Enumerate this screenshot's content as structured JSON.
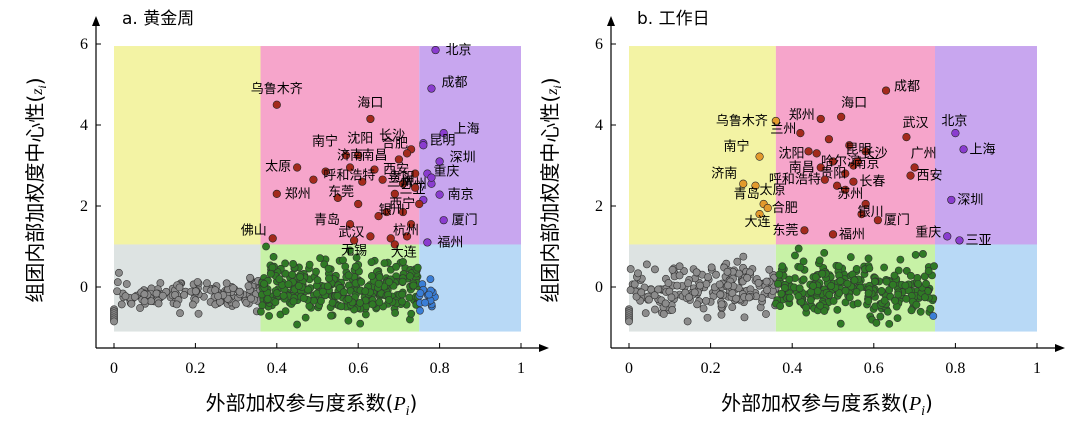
{
  "chart_data": [
    {
      "type": "scatter",
      "title": "a. 黄金周",
      "xlabel": "外部加权参与度系数",
      "xlabel_sym": "P",
      "xlabel_sub": "i",
      "ylabel": "组团内部加权度中心性",
      "ylabel_sym": "z",
      "ylabel_sub": "i",
      "xlim": [
        0,
        1
      ],
      "ylim": [
        -1.3,
        6
      ],
      "xticks": [
        "0",
        "0.2",
        "0.4",
        "0.6",
        "0.8",
        "1"
      ],
      "yticks": [
        "0",
        "2",
        "4",
        "6"
      ],
      "regions": [
        {
          "x": [
            0,
            0.36
          ],
          "y": [
            1.05,
            5.95
          ],
          "color": "#f3f3a4"
        },
        {
          "x": [
            0.36,
            0.75
          ],
          "y": [
            1.05,
            5.95
          ],
          "color": "#f6a5cb"
        },
        {
          "x": [
            0.75,
            1
          ],
          "y": [
            1.05,
            5.95
          ],
          "color": "#c8a6ef"
        },
        {
          "x": [
            0,
            0.36
          ],
          "y": [
            -1.1,
            1.05
          ],
          "color": "#dde3e2"
        },
        {
          "x": [
            0.36,
            0.75
          ],
          "y": [
            -1.1,
            1.05
          ],
          "color": "#c7f2a6"
        },
        {
          "x": [
            0.75,
            1
          ],
          "y": [
            -1.1,
            1.05
          ],
          "color": "#b8d9f6"
        }
      ],
      "labeled_points": [
        {
          "name": "北京",
          "x": 0.79,
          "y": 5.85,
          "color": "#8a3ccf"
        },
        {
          "name": "成都",
          "x": 0.78,
          "y": 4.9,
          "color": "#8a3ccf"
        },
        {
          "name": "上海",
          "x": 0.81,
          "y": 3.8,
          "color": "#8a3ccf"
        },
        {
          "name": "昆明",
          "x": 0.76,
          "y": 3.5,
          "color": "#8a3ccf"
        },
        {
          "name": "深圳",
          "x": 0.8,
          "y": 3.1,
          "color": "#8a3ccf"
        },
        {
          "name": "重庆",
          "x": 0.77,
          "y": 2.8,
          "color": "#8a3ccf"
        },
        {
          "name": "南京",
          "x": 0.8,
          "y": 2.28,
          "color": "#8a3ccf"
        },
        {
          "name": "厦门",
          "x": 0.81,
          "y": 1.65,
          "color": "#8a3ccf"
        },
        {
          "name": "福州",
          "x": 0.77,
          "y": 1.1,
          "color": "#8a3ccf"
        },
        {
          "name": "三亚",
          "x": 0.78,
          "y": 2.7,
          "color": "#8a3ccf"
        },
        {
          "name": "乌鲁木齐",
          "x": 0.4,
          "y": 4.5,
          "color": "#a32a1c"
        },
        {
          "name": "海口",
          "x": 0.63,
          "y": 4.15,
          "color": "#a32a1c"
        },
        {
          "name": "长沙",
          "x": 0.73,
          "y": 3.4,
          "color": "#a32a1c"
        },
        {
          "name": "南宁",
          "x": 0.57,
          "y": 3.25,
          "color": "#a32a1c"
        },
        {
          "name": "沈阳",
          "x": 0.6,
          "y": 3.25,
          "color": "#a32a1c"
        },
        {
          "name": "合肥",
          "x": 0.72,
          "y": 3.3,
          "color": "#a32a1c"
        },
        {
          "name": "太原",
          "x": 0.45,
          "y": 2.95,
          "color": "#a32a1c"
        },
        {
          "name": "济南",
          "x": 0.58,
          "y": 2.95,
          "color": "#a32a1c"
        },
        {
          "name": "南昌",
          "x": 0.64,
          "y": 2.9,
          "color": "#a32a1c"
        },
        {
          "name": "西安",
          "x": 0.74,
          "y": 2.8,
          "color": "#a32a1c"
        },
        {
          "name": "呼和浩特",
          "x": 0.49,
          "y": 2.65,
          "color": "#a32a1c"
        },
        {
          "name": "贵阳",
          "x": 0.66,
          "y": 2.65,
          "color": "#a32a1c"
        },
        {
          "name": "苏州",
          "x": 0.69,
          "y": 2.3,
          "color": "#a32a1c"
        },
        {
          "name": "兰州",
          "x": 0.74,
          "y": 2.45,
          "color": "#a32a1c"
        },
        {
          "name": "郑州",
          "x": 0.4,
          "y": 2.3,
          "color": "#a32a1c"
        },
        {
          "name": "东莞",
          "x": 0.6,
          "y": 2.05,
          "color": "#a32a1c"
        },
        {
          "name": "西宁",
          "x": 0.75,
          "y": 2.05,
          "color": "#a32a1c"
        },
        {
          "name": "银川",
          "x": 0.67,
          "y": 1.85,
          "color": "#a32a1c"
        },
        {
          "name": "佛山",
          "x": 0.39,
          "y": 1.2,
          "color": "#a32a1c"
        },
        {
          "name": "青岛",
          "x": 0.58,
          "y": 1.55,
          "color": "#a32a1c"
        },
        {
          "name": "武汉",
          "x": 0.63,
          "y": 1.25,
          "color": "#a32a1c"
        },
        {
          "name": "杭州",
          "x": 0.72,
          "y": 1.25,
          "color": "#a32a1c"
        },
        {
          "name": "无锡",
          "x": 0.59,
          "y": 1.15,
          "color": "#a32a1c"
        },
        {
          "name": "大连",
          "x": 0.68,
          "y": 1.2,
          "color": "#a32a1c"
        }
      ],
      "unlabeled_points": [
        {
          "x": 0.76,
          "y": 3.55,
          "color": "#8a3ccf"
        },
        {
          "x": 0.78,
          "y": 2.55,
          "color": "#8a3ccf"
        },
        {
          "x": 0.76,
          "y": 2.15,
          "color": "#8a3ccf"
        },
        {
          "x": 0.7,
          "y": 3.15,
          "color": "#a32a1c"
        },
        {
          "x": 0.71,
          "y": 2.55,
          "color": "#a32a1c"
        },
        {
          "x": 0.69,
          "y": 1.05,
          "color": "#a32a1c"
        },
        {
          "x": 0.65,
          "y": 1.75,
          "color": "#a32a1c"
        },
        {
          "x": 0.55,
          "y": 2.2,
          "color": "#a32a1c"
        },
        {
          "x": 0.52,
          "y": 2.85,
          "color": "#a32a1c"
        },
        {
          "x": 0.61,
          "y": 2.6,
          "color": "#a32a1c"
        },
        {
          "x": 0.73,
          "y": 1.55,
          "color": "#a32a1c"
        },
        {
          "x": 0.71,
          "y": 1.85,
          "color": "#a32a1c"
        }
      ],
      "clusters": [
        {
          "color": "#8c8c8c",
          "x_range": [
            0.0,
            0.36
          ],
          "y_range": [
            -0.8,
            0.35
          ],
          "count": 150
        },
        {
          "color": "#2f7a25",
          "x_range": [
            0.36,
            0.75
          ],
          "y_range": [
            -1.05,
            1.0
          ],
          "count": 330
        },
        {
          "color": "#3a7ed6",
          "x_range": [
            0.75,
            0.79
          ],
          "y_range": [
            -0.85,
            0.35
          ],
          "count": 18
        }
      ]
    },
    {
      "type": "scatter",
      "title": "b. 工作日",
      "xlabel": "外部加权参与度系数",
      "xlabel_sym": "P",
      "xlabel_sub": "i",
      "ylabel": "组团内部加权度中心性",
      "ylabel_sym": "z",
      "ylabel_sub": "i",
      "xlim": [
        0,
        1
      ],
      "ylim": [
        -1.3,
        6
      ],
      "xticks": [
        "0",
        "0.2",
        "0.4",
        "0.6",
        "0.8",
        "1"
      ],
      "yticks": [
        "0",
        "2",
        "4",
        "6"
      ],
      "regions": [
        {
          "x": [
            0,
            0.36
          ],
          "y": [
            1.05,
            5.95
          ],
          "color": "#f3f3a4"
        },
        {
          "x": [
            0.36,
            0.75
          ],
          "y": [
            1.05,
            5.95
          ],
          "color": "#f6a5cb"
        },
        {
          "x": [
            0.75,
            1
          ],
          "y": [
            1.05,
            5.95
          ],
          "color": "#c8a6ef"
        },
        {
          "x": [
            0,
            0.36
          ],
          "y": [
            -1.1,
            1.05
          ],
          "color": "#dde3e2"
        },
        {
          "x": [
            0.36,
            0.75
          ],
          "y": [
            -1.1,
            1.05
          ],
          "color": "#c7f2a6"
        },
        {
          "x": [
            0.75,
            1
          ],
          "y": [
            -1.1,
            1.05
          ],
          "color": "#b8d9f6"
        }
      ],
      "labeled_points": [
        {
          "name": "乌鲁木齐",
          "x": 0.36,
          "y": 4.1,
          "color": "#e39a2d"
        },
        {
          "name": "南宁",
          "x": 0.32,
          "y": 3.22,
          "color": "#e39a2d"
        },
        {
          "name": "济南",
          "x": 0.28,
          "y": 2.55,
          "color": "#e39a2d"
        },
        {
          "name": "太原",
          "x": 0.31,
          "y": 2.5,
          "color": "#e39a2d"
        },
        {
          "name": "青岛",
          "x": 0.33,
          "y": 2.05,
          "color": "#e39a2d"
        },
        {
          "name": "合肥",
          "x": 0.34,
          "y": 1.95,
          "color": "#e39a2d"
        },
        {
          "name": "大连",
          "x": 0.32,
          "y": 1.8,
          "color": "#e39a2d"
        },
        {
          "name": "成都",
          "x": 0.63,
          "y": 4.85,
          "color": "#a32a1c"
        },
        {
          "name": "海口",
          "x": 0.52,
          "y": 4.2,
          "color": "#a32a1c"
        },
        {
          "name": "郑州",
          "x": 0.47,
          "y": 4.15,
          "color": "#a32a1c"
        },
        {
          "name": "兰州",
          "x": 0.42,
          "y": 3.8,
          "color": "#a32a1c"
        },
        {
          "name": "武汉",
          "x": 0.68,
          "y": 3.7,
          "color": "#a32a1c"
        },
        {
          "name": "昆明",
          "x": 0.54,
          "y": 3.5,
          "color": "#a32a1c"
        },
        {
          "name": "长沙",
          "x": 0.58,
          "y": 3.35,
          "color": "#a32a1c"
        },
        {
          "name": "沈阳",
          "x": 0.44,
          "y": 3.35,
          "color": "#a32a1c"
        },
        {
          "name": "哈尔滨",
          "x": 0.5,
          "y": 3.1,
          "color": "#a32a1c"
        },
        {
          "name": "南京",
          "x": 0.56,
          "y": 3.1,
          "color": "#a32a1c"
        },
        {
          "name": "南昌",
          "x": 0.47,
          "y": 2.95,
          "color": "#a32a1c"
        },
        {
          "name": "贵阳",
          "x": 0.53,
          "y": 2.8,
          "color": "#a32a1c"
        },
        {
          "name": "广州",
          "x": 0.7,
          "y": 2.95,
          "color": "#a32a1c"
        },
        {
          "name": "西安",
          "x": 0.69,
          "y": 2.75,
          "color": "#a32a1c"
        },
        {
          "name": "呼和浩特",
          "x": 0.48,
          "y": 2.65,
          "color": "#a32a1c"
        },
        {
          "name": "长春",
          "x": 0.55,
          "y": 2.6,
          "color": "#a32a1c"
        },
        {
          "name": "苏州",
          "x": 0.53,
          "y": 2.4,
          "color": "#a32a1c"
        },
        {
          "name": "银川",
          "x": 0.58,
          "y": 2.05,
          "color": "#a32a1c"
        },
        {
          "name": "东莞",
          "x": 0.43,
          "y": 1.4,
          "color": "#a32a1c"
        },
        {
          "name": "福州",
          "x": 0.5,
          "y": 1.3,
          "color": "#a32a1c"
        },
        {
          "name": "厦门",
          "x": 0.61,
          "y": 1.65,
          "color": "#a32a1c"
        },
        {
          "name": "北京",
          "x": 0.8,
          "y": 3.8,
          "color": "#8a3ccf"
        },
        {
          "name": "上海",
          "x": 0.82,
          "y": 3.4,
          "color": "#8a3ccf"
        },
        {
          "name": "深圳",
          "x": 0.79,
          "y": 2.15,
          "color": "#8a3ccf"
        },
        {
          "name": "重庆",
          "x": 0.78,
          "y": 1.25,
          "color": "#8a3ccf"
        },
        {
          "name": "三亚",
          "x": 0.81,
          "y": 1.15,
          "color": "#8a3ccf"
        }
      ],
      "unlabeled_points": [
        {
          "x": 0.49,
          "y": 3.65,
          "color": "#a32a1c"
        },
        {
          "x": 0.55,
          "y": 3.0,
          "color": "#a32a1c"
        },
        {
          "x": 0.51,
          "y": 2.5,
          "color": "#a32a1c"
        },
        {
          "x": 0.57,
          "y": 1.8,
          "color": "#a32a1c"
        },
        {
          "x": 0.46,
          "y": 3.3,
          "color": "#a32a1c"
        }
      ],
      "clusters": [
        {
          "color": "#8c8c8c",
          "x_range": [
            0.0,
            0.36
          ],
          "y_range": [
            -0.85,
            0.75
          ],
          "count": 210
        },
        {
          "color": "#2f7a25",
          "x_range": [
            0.36,
            0.75
          ],
          "y_range": [
            -1.05,
            0.95
          ],
          "count": 270
        },
        {
          "color": "#3a7ed6",
          "x_range": [
            0.74,
            0.76
          ],
          "y_range": [
            -0.8,
            -0.7
          ],
          "count": 1
        }
      ]
    }
  ]
}
